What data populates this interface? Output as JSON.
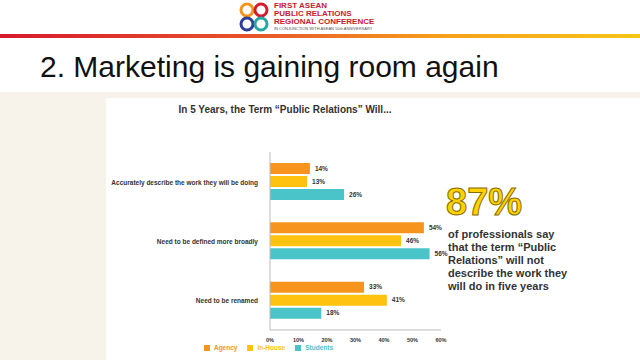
{
  "slide": {
    "logo_lines": [
      "FIRST ASEAN",
      "PUBLIC RELATIONS",
      "REGIONAL CONFERENCE"
    ],
    "logo_subline": "IN CONJUNCTION WITH ASEAN 50th ANNIVERSARY",
    "title": "2. Marketing is gaining room again",
    "callout": {
      "big_text": "87%",
      "caption": "of professionals say that the term “Public Relations” will not describe the work they will do in five years"
    }
  },
  "chart_data": {
    "type": "bar",
    "orientation": "horizontal",
    "title": "In 5 Years, the Term “Public Relations” Will...",
    "categories": [
      "Accurately describe the work they will be doing",
      "Need to be defined more broadly",
      "Need to be renamed"
    ],
    "series": [
      {
        "name": "Agency",
        "color": "#f7941d",
        "values": [
          14,
          54,
          33
        ],
        "value_labels": [
          "14%",
          "54%",
          "33%"
        ]
      },
      {
        "name": "In-House",
        "color": "#ffc20e",
        "values": [
          13,
          46,
          41
        ],
        "value_labels": [
          "13%",
          "46%",
          "41%"
        ]
      },
      {
        "name": "Students",
        "color": "#4bc4c9",
        "values": [
          26,
          56,
          18
        ],
        "value_labels": [
          "26%",
          "56%",
          "18%"
        ]
      }
    ],
    "xlim": [
      0,
      60
    ],
    "xticks": [
      {
        "value": 0,
        "label": "0%"
      },
      {
        "value": 10,
        "label": "10%"
      },
      {
        "value": 20,
        "label": "20%"
      },
      {
        "value": 30,
        "label": "30%"
      },
      {
        "value": 40,
        "label": "40%"
      },
      {
        "value": 50,
        "label": "50%"
      },
      {
        "value": 60,
        "label": "60%"
      }
    ],
    "grid": false,
    "legend": "bottom",
    "data_labels": true
  }
}
